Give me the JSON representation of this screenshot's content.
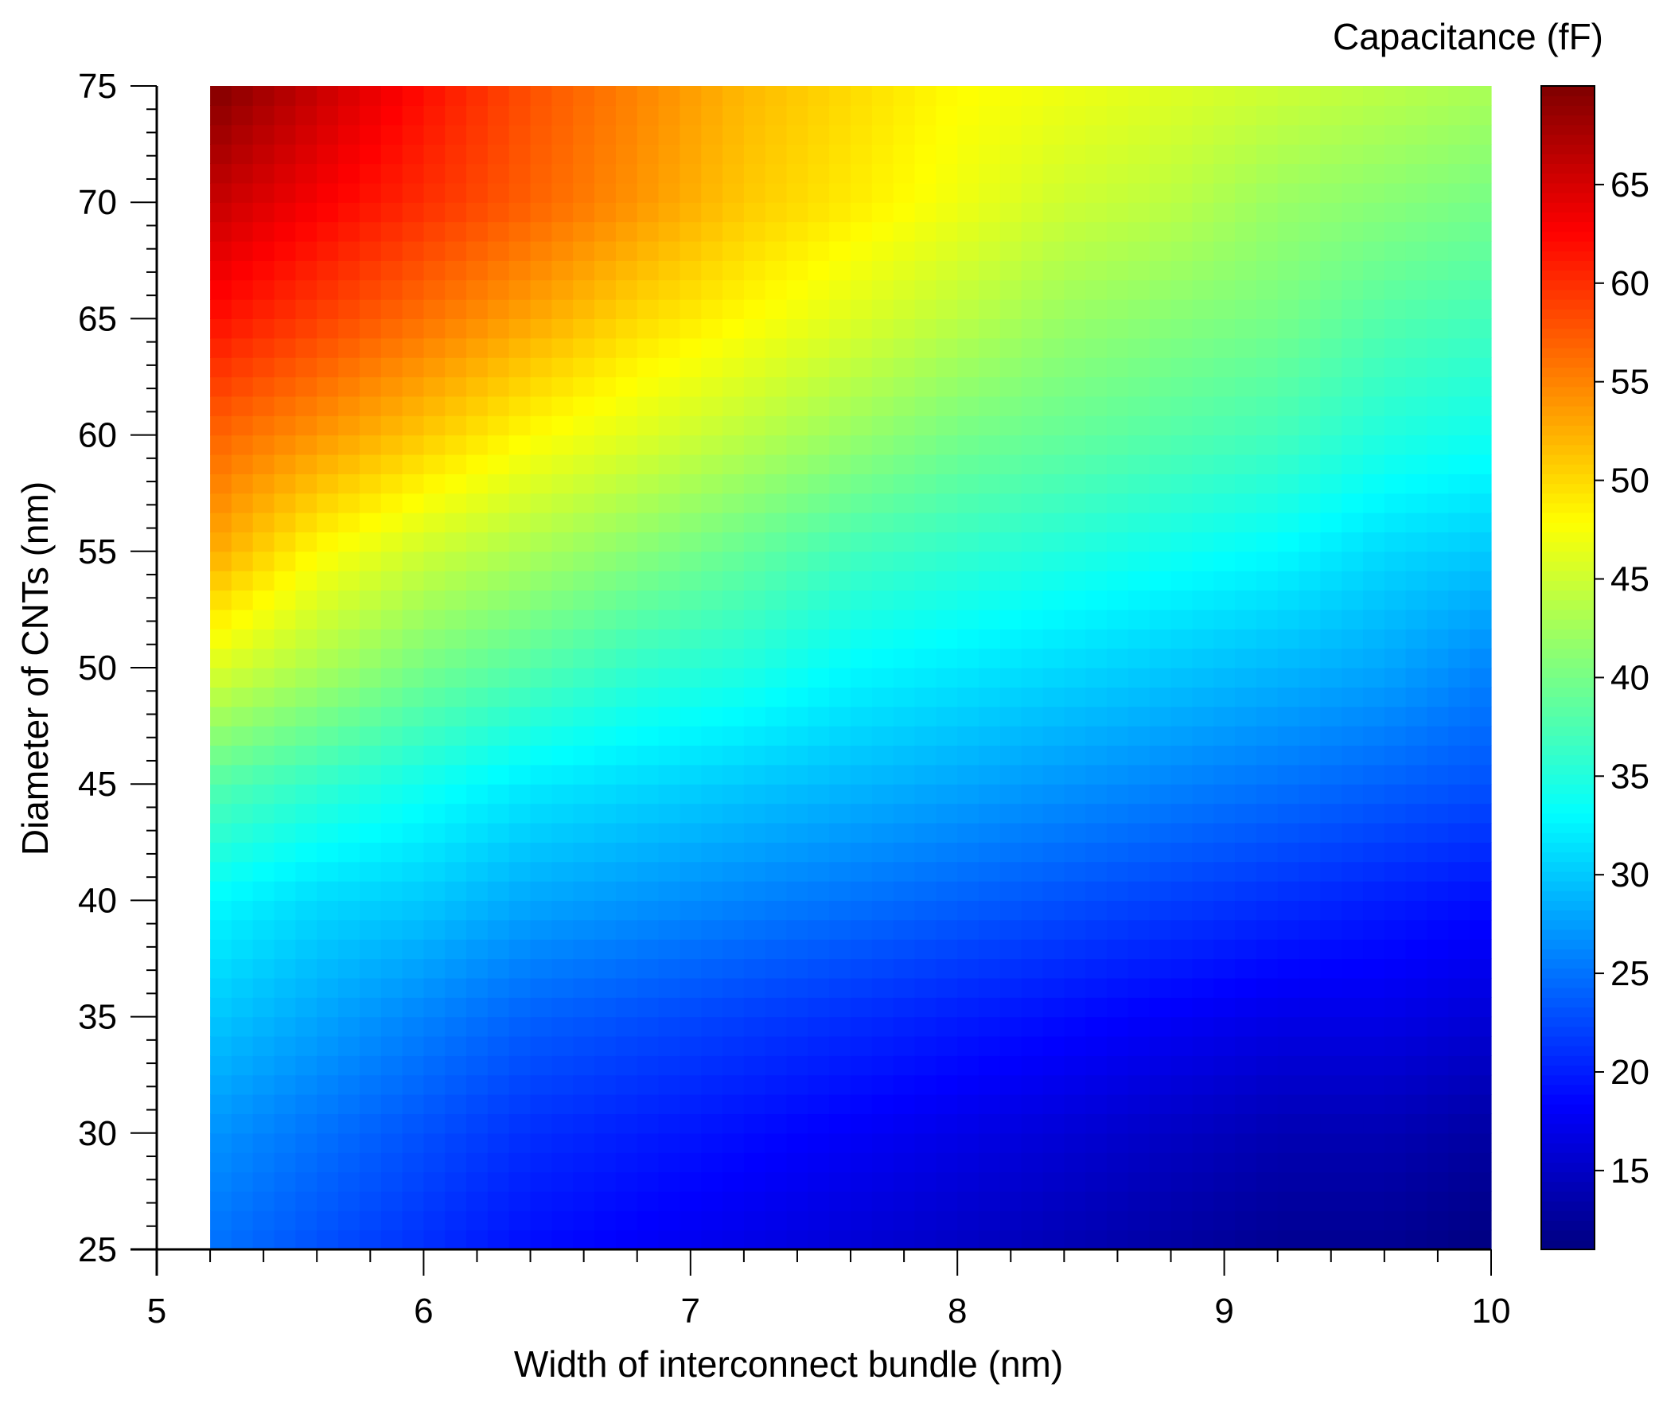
{
  "chart_data": {
    "type": "heatmap",
    "title": "",
    "xlabel": "Width of interconnect bundle (nm)",
    "ylabel": "Diameter of CNTs (nm)",
    "colorbar_label": "Capacitance (fF)",
    "xlim": [
      5,
      10
    ],
    "ylim": [
      25,
      75
    ],
    "x_data_range": [
      5.2,
      10
    ],
    "x_ticks": [
      "5",
      "6",
      "7",
      "8",
      "9",
      "10"
    ],
    "y_ticks": [
      "25",
      "30",
      "35",
      "40",
      "45",
      "50",
      "55",
      "60",
      "65",
      "70",
      "75"
    ],
    "colorbar_range": [
      11,
      70
    ],
    "colorbar_ticks": [
      "15",
      "20",
      "25",
      "30",
      "35",
      "40",
      "45",
      "50",
      "55",
      "60",
      "65"
    ],
    "colormap": "jet",
    "colormap_stops": [
      "#00007f",
      "#0000ff",
      "#007fff",
      "#00ffff",
      "#7fff7f",
      "#ffff00",
      "#ff7f00",
      "#ff0000",
      "#7f0000"
    ],
    "x": [
      5.2,
      5.6,
      6.0,
      6.4,
      6.8,
      7.2,
      7.6,
      8.0,
      8.4,
      8.8,
      9.2,
      9.6,
      10.0
    ],
    "y": [
      25,
      30,
      35,
      40,
      45,
      50,
      55,
      60,
      65,
      70,
      75
    ],
    "z": [
      [
        25,
        23,
        21,
        19,
        18,
        17,
        16,
        15,
        14,
        13,
        12,
        12,
        11
      ],
      [
        27,
        25,
        23,
        21,
        20,
        19,
        18,
        17,
        16,
        15,
        14,
        14,
        13
      ],
      [
        30,
        28,
        26,
        24,
        23,
        22,
        21,
        20,
        19,
        18,
        17,
        17,
        16
      ],
      [
        33,
        31,
        30,
        28,
        27,
        26,
        25,
        24,
        23,
        22,
        21,
        20,
        19
      ],
      [
        38,
        36,
        34,
        32,
        31,
        30,
        29,
        28,
        27,
        26,
        25,
        24,
        23
      ],
      [
        46,
        43,
        40,
        38,
        36,
        35,
        33,
        32,
        31,
        30,
        29,
        28,
        26
      ],
      [
        53,
        48,
        45,
        43,
        41,
        39,
        37,
        36,
        35,
        34,
        33,
        31,
        30
      ],
      [
        57,
        54,
        51,
        48,
        46,
        44,
        42,
        40,
        39,
        38,
        37,
        35,
        34
      ],
      [
        62,
        59,
        56,
        53,
        50,
        48,
        46,
        44,
        42,
        41,
        40,
        38,
        37
      ],
      [
        66,
        63,
        60,
        57,
        54,
        51,
        49,
        47,
        45,
        44,
        42,
        41,
        40
      ],
      [
        70,
        66,
        62,
        58,
        55,
        52,
        50,
        48,
        47,
        46,
        45,
        44,
        43
      ]
    ]
  }
}
